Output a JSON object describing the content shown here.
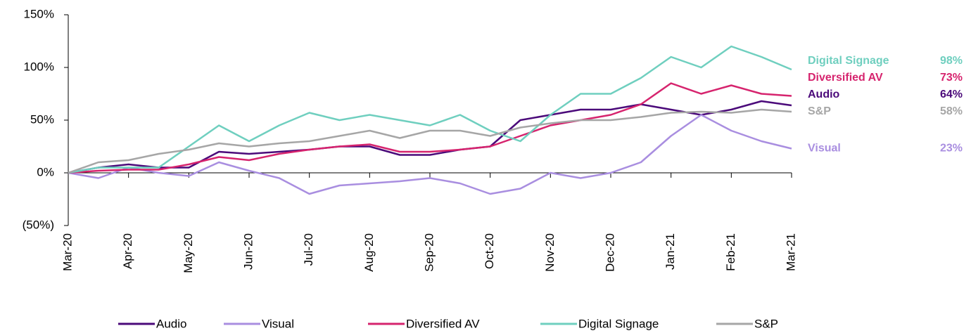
{
  "chart_data": {
    "type": "line",
    "x": [
      0,
      0.5,
      1,
      1.5,
      2,
      2.5,
      3,
      3.5,
      4,
      4.5,
      5,
      5.5,
      6,
      6.5,
      7,
      7.5,
      8,
      8.5,
      9,
      9.5,
      10,
      10.5,
      11,
      11.5,
      12
    ],
    "xlim": [
      0,
      12
    ],
    "xticks": [
      {
        "value": 0,
        "label": "Mar-20"
      },
      {
        "value": 1,
        "label": "Apr-20"
      },
      {
        "value": 2,
        "label": "May-20"
      },
      {
        "value": 3,
        "label": "Jun-20"
      },
      {
        "value": 4,
        "label": "Jul-20"
      },
      {
        "value": 5,
        "label": "Aug-20"
      },
      {
        "value": 6,
        "label": "Sep-20"
      },
      {
        "value": 7,
        "label": "Oct-20"
      },
      {
        "value": 8,
        "label": "Nov-20"
      },
      {
        "value": 9,
        "label": "Dec-20"
      },
      {
        "value": 10,
        "label": "Jan-21"
      },
      {
        "value": 11,
        "label": "Feb-21"
      },
      {
        "value": 12,
        "label": "Mar-21"
      }
    ],
    "ylim": [
      -50,
      150
    ],
    "yticks": [
      {
        "value": -50,
        "label": "(50%)"
      },
      {
        "value": 0,
        "label": "0%"
      },
      {
        "value": 50,
        "label": "50%"
      },
      {
        "value": 100,
        "label": "100%"
      },
      {
        "value": 150,
        "label": "150%"
      }
    ],
    "series": [
      {
        "name": "Audio",
        "color": "#4b0a7a",
        "end_label": "64%",
        "values": [
          0,
          5,
          8,
          5,
          5,
          20,
          18,
          20,
          22,
          25,
          25,
          17,
          17,
          22,
          25,
          50,
          55,
          60,
          60,
          65,
          60,
          55,
          60,
          68,
          64
        ]
      },
      {
        "name": "Visual",
        "color": "#a98ee0",
        "end_label": "23%",
        "values": [
          0,
          -5,
          5,
          0,
          -3,
          10,
          2,
          -5,
          -20,
          -12,
          -10,
          -8,
          -5,
          -10,
          -20,
          -15,
          0,
          -5,
          0,
          10,
          35,
          55,
          40,
          30,
          23
        ]
      },
      {
        "name": "Diversified AV",
        "color": "#d6246e",
        "end_label": "73%",
        "values": [
          0,
          2,
          3,
          3,
          8,
          15,
          12,
          18,
          22,
          25,
          27,
          20,
          20,
          22,
          25,
          35,
          45,
          50,
          55,
          65,
          85,
          75,
          83,
          75,
          73
        ]
      },
      {
        "name": "Digital Signage",
        "color": "#6fcfbf",
        "end_label": "98%",
        "values": [
          0,
          5,
          5,
          5,
          25,
          45,
          30,
          45,
          57,
          50,
          55,
          50,
          45,
          55,
          40,
          30,
          55,
          75,
          75,
          90,
          110,
          100,
          120,
          110,
          98
        ]
      },
      {
        "name": "S&P",
        "color": "#a6a6a6",
        "end_label": "58%",
        "values": [
          0,
          10,
          12,
          18,
          22,
          28,
          25,
          28,
          30,
          35,
          40,
          33,
          40,
          40,
          35,
          43,
          47,
          50,
          50,
          53,
          57,
          58,
          57,
          60,
          58
        ]
      }
    ]
  }
}
